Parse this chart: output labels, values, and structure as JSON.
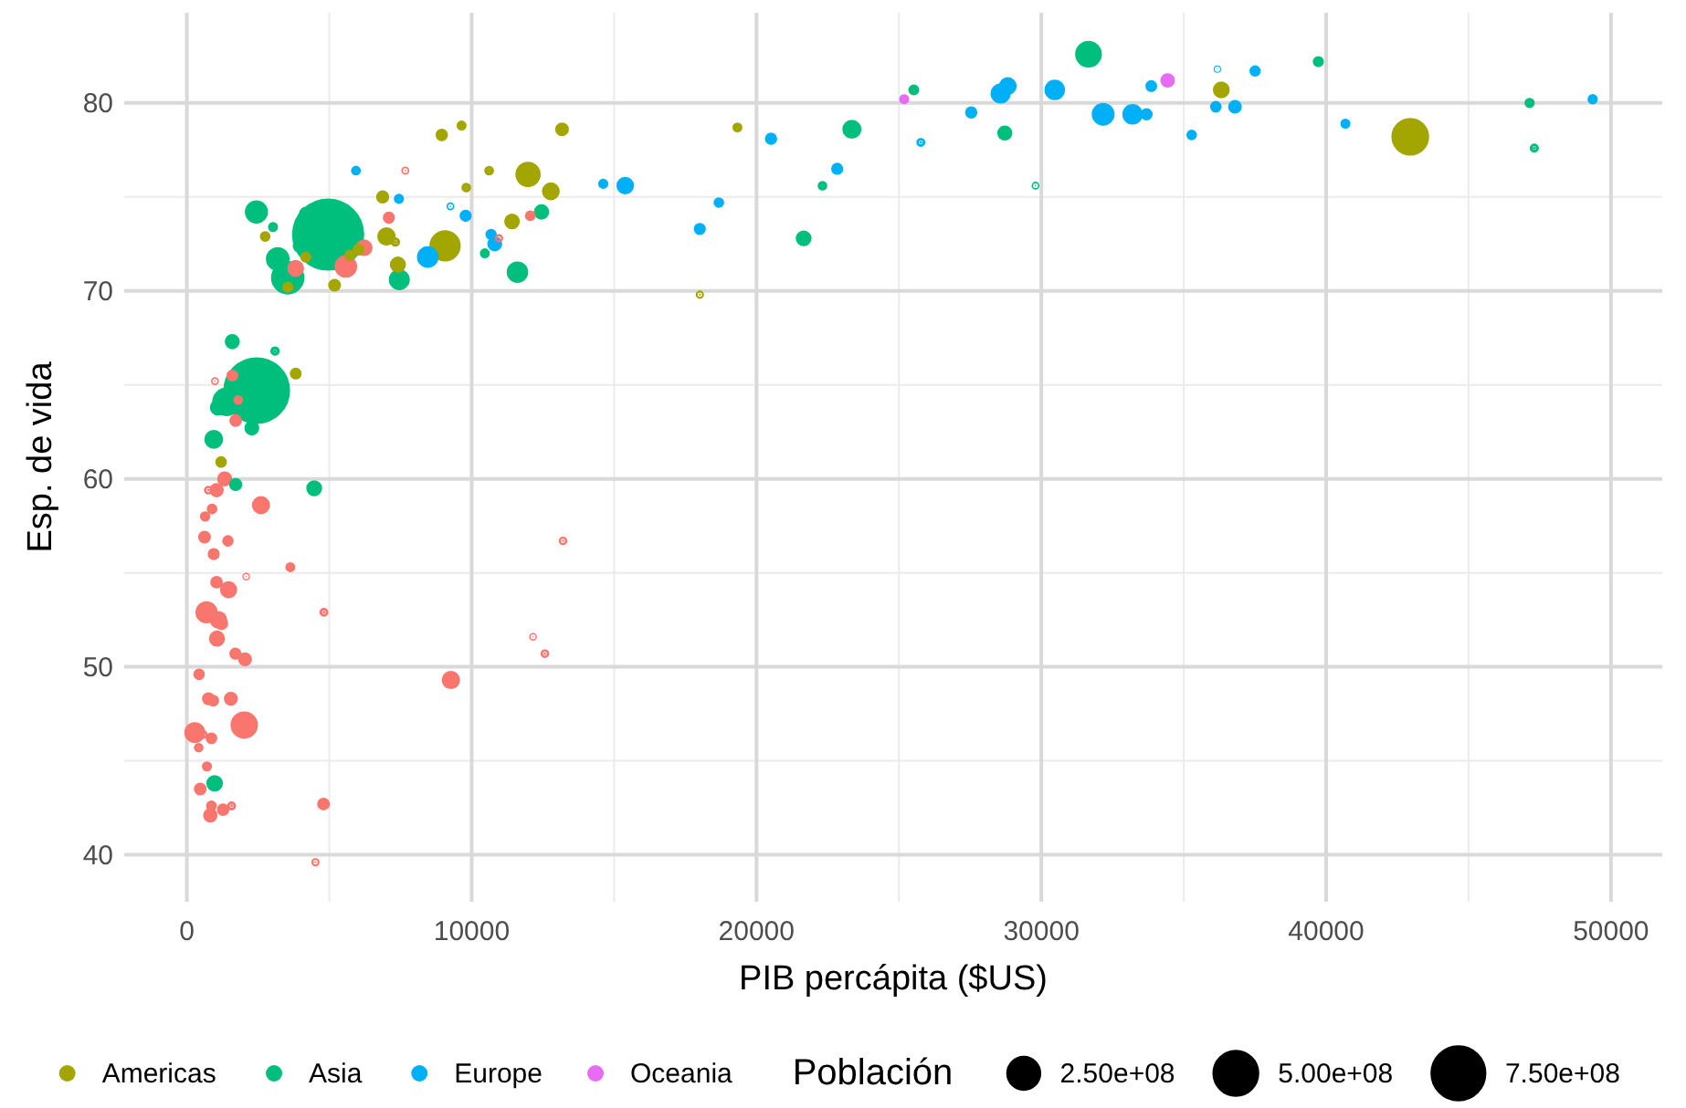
{
  "chart_data": {
    "type": "bubble",
    "xlabel": "PIB percápita ($US)",
    "ylabel": "Esp. de vida",
    "legend_title": "Población",
    "xlim": [
      -2200,
      51800
    ],
    "ylim": [
      37.5,
      84.8
    ],
    "xticks": [
      0,
      10000,
      20000,
      30000,
      40000,
      50000
    ],
    "yticks": [
      40,
      50,
      60,
      70,
      80
    ],
    "grid": true,
    "legend": "bottom",
    "size_legend": [
      {
        "value": 250000000,
        "label": "2.50e+08"
      },
      {
        "value": 500000000,
        "label": "5.00e+08"
      },
      {
        "value": 750000000,
        "label": "7.50e+08"
      }
    ],
    "series": [
      {
        "color": "#f8766d",
        "x": [
          6223,
          4797,
          1441,
          12570,
          1217,
          430,
          2042,
          706,
          1704,
          986,
          278,
          3633,
          1545,
          2083,
          5581,
          12154,
          641,
          691,
          13206,
          753,
          1328,
          943,
          579,
          1463,
          1569,
          415,
          12058,
          1045,
          759,
          1043,
          1803,
          10957,
          3820,
          824,
          4811,
          620,
          2014,
          7670,
          863,
          1598,
          1713,
          863,
          926,
          9270,
          2602,
          4514,
          1108,
          883,
          7093,
          1056,
          1271,
          470
        ],
        "values": [
          72.3,
          42.7,
          56.7,
          50.7,
          52.3,
          49.6,
          50.4,
          44.7,
          50.7,
          65.2,
          46.5,
          55.3,
          48.3,
          54.8,
          71.3,
          51.6,
          58.0,
          52.9,
          56.7,
          59.4,
          60.0,
          56.0,
          46.4,
          54.1,
          42.6,
          45.7,
          74.0,
          59.4,
          48.3,
          54.5,
          64.2,
          72.8,
          71.2,
          42.1,
          52.9,
          56.9,
          46.9,
          76.4,
          46.2,
          65.5,
          63.1,
          42.6,
          48.2,
          49.3,
          58.6,
          39.6,
          52.5,
          58.4,
          73.9,
          51.5,
          42.4,
          43.5
        ],
        "sizes": [
          33300000,
          12400000,
          8080000,
          1640000,
          14300000,
          8390000,
          17700000,
          4370000,
          10200000,
          711000,
          64600000,
          3800000,
          18000000,
          496000,
          80300000,
          551000,
          4910000,
          76500000,
          1450000,
          1690000,
          22900000,
          9950000,
          1470000,
          35600000,
          2010000,
          3190000,
          6040000,
          19200000,
          13300000,
          12000000,
          3270000,
          1250000,
          33800000,
          20000000,
          2060000,
          12900000,
          135000000,
          798000,
          8860000,
          null,
          12300000,
          6140000,
          9120000,
          44000000,
          42300000,
          1130000,
          38100000,
          5700000,
          10300000,
          29200000,
          11700000,
          12300000
        ]
      },
      {
        "name": "Americas",
        "color": "#a3a500",
        "x": [
          12779,
          3822,
          9066,
          36319,
          13172,
          7007,
          9645,
          8948,
          6025,
          6873,
          5728,
          5186,
          1202,
          3548,
          7321,
          11978,
          2749,
          9809,
          4173,
          7409,
          19329,
          18009,
          42952,
          10612,
          11416
        ],
        "values": [
          75.3,
          65.6,
          72.4,
          80.7,
          78.6,
          72.9,
          78.8,
          78.3,
          72.2,
          75.0,
          71.9,
          70.3,
          60.9,
          70.2,
          72.6,
          76.2,
          72.9,
          75.5,
          71.8,
          71.4,
          78.7,
          69.8,
          78.2,
          76.4,
          73.7
        ],
        "sizes": [
          40300000,
          9120000,
          190000000,
          33400000,
          16300000,
          44200000,
          4130000,
          11400000,
          9320000,
          13800000,
          6940000,
          12600000,
          8500000,
          7480000,
          2780000,
          109000000,
          5680000,
          3240000,
          6670000,
          28700000,
          3940000,
          1060000,
          301000000,
          3450000,
          26100000
        ]
      },
      {
        "name": "Asia",
        "color": "#00bf7d",
        "x": [
          975,
          29796,
          1391,
          1714,
          4959,
          39725,
          2452,
          3541,
          11606,
          4471,
          25523,
          31656,
          1593,
          23348,
          47307,
          10461,
          12452,
          3096,
          944,
          1091,
          22316,
          3190,
          21655,
          47143,
          3970,
          4185,
          28718,
          7458,
          2442,
          3025,
          2281
        ],
        "values": [
          43.8,
          75.6,
          64.1,
          59.7,
          73.0,
          82.2,
          64.7,
          70.7,
          71.0,
          59.5,
          80.7,
          82.6,
          67.3,
          78.6,
          77.6,
          72.0,
          74.2,
          66.8,
          62.1,
          63.8,
          75.6,
          71.7,
          72.8,
          80.0,
          72.4,
          74.1,
          78.4,
          70.6,
          74.2,
          73.4,
          62.7
        ],
        "sizes": [
          31900000,
          709000,
          150000000,
          14100000,
          1320000000,
          6980000,
          1110000000,
          224000000,
          69500000,
          27500000,
          6430000,
          127000000,
          23300000,
          49000000,
          2510000,
          3920000,
          24800000,
          2870000,
          47800000,
          28900000,
          3200000,
          91100000,
          27600000,
          4550000,
          20400000,
          19300000,
          23200000,
          65100000,
          85300000,
          4020000,
          22200000
        ]
      },
      {
        "name": "Europe",
        "color": "#00b0f6",
        "x": [
          5937,
          36126,
          33693,
          7446,
          10681,
          14619,
          22833,
          35278,
          30470,
          32170,
          27538,
          18009,
          36181,
          40676,
          28570,
          9254,
          36798,
          49357,
          15390,
          20510,
          10809,
          9787,
          18678,
          25768,
          28821,
          33860,
          37506,
          8458,
          33203
        ],
        "values": [
          76.4,
          79.8,
          79.4,
          74.9,
          73.0,
          75.7,
          76.5,
          78.3,
          80.7,
          79.4,
          79.5,
          73.3,
          81.8,
          78.9,
          80.5,
          74.5,
          79.8,
          80.2,
          75.6,
          78.1,
          72.5,
          74.0,
          74.7,
          77.9,
          80.9,
          80.9,
          81.7,
          71.8,
          79.4
        ],
        "sizes": [
          3600000,
          8200000,
          10400000,
          4550000,
          7320000,
          4490000,
          10200000,
          5470000,
          61100000,
          82400000,
          10700000,
          9960000,
          302000,
          4110000,
          58100000,
          685000,
          16600000,
          4630000,
          38500000,
          10600000,
          22300000,
          10200000,
          5450000,
          2010000,
          40400000,
          9030000,
          7550000,
          71200000,
          60800000
        ]
      },
      {
        "name": "Oceania",
        "color": "#e76bf3",
        "x": [
          34435,
          25185
        ],
        "values": [
          81.2,
          80.2
        ],
        "sizes": [
          20400000,
          4120000
        ]
      }
    ]
  }
}
